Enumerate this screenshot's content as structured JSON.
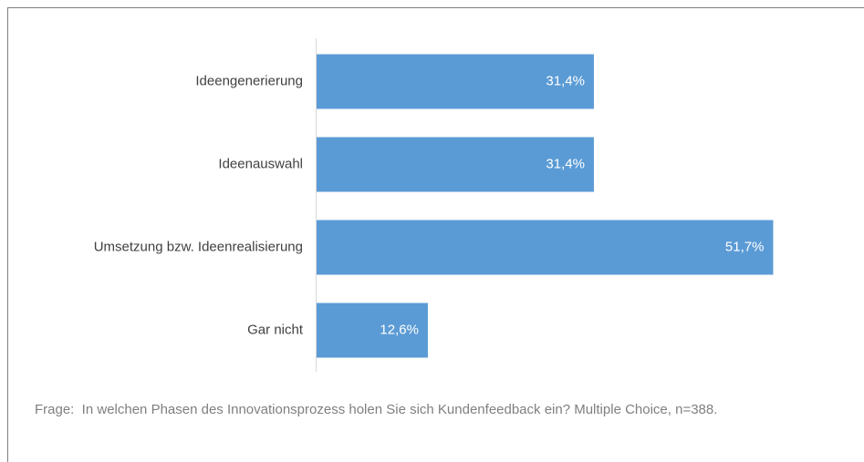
{
  "chart_data": {
    "type": "hbar",
    "categories": [
      "Ideengenerierung",
      "Ideenauswahl",
      "Umsetzung bzw. Ideenrealisierung",
      "Gar nicht"
    ],
    "values": [
      31.4,
      31.4,
      51.7,
      12.6
    ],
    "value_labels": [
      "31,4%",
      "31,4%",
      "51,7%",
      "12,6%"
    ],
    "color": "#5b9bd5",
    "note": "Frage:  In welchen Phasen des Innovationsprozess holen Sie sich Kundenfeedback ein? Multiple Choice, n=388."
  }
}
